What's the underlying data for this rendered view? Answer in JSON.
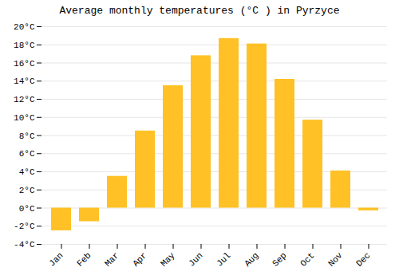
{
  "chart_data": {
    "type": "bar",
    "title": "Average monthly temperatures (°C ) in Pyrzyce",
    "categories": [
      "Jan",
      "Feb",
      "Mar",
      "Apr",
      "May",
      "Jun",
      "Jul",
      "Aug",
      "Sep",
      "Oct",
      "Nov",
      "Dec"
    ],
    "values": [
      -2.5,
      -1.5,
      3.5,
      8.5,
      13.5,
      16.8,
      18.7,
      18.1,
      14.2,
      9.7,
      4.1,
      -0.3
    ],
    "color": "#FFC125",
    "ylim": [
      -4,
      20
    ],
    "yticks": [
      {
        "value": -4,
        "label": "-4°C"
      },
      {
        "value": -2,
        "label": "-2°C"
      },
      {
        "value": 0,
        "label": "0°C"
      },
      {
        "value": 2,
        "label": "2°C"
      },
      {
        "value": 4,
        "label": "4°C"
      },
      {
        "value": 6,
        "label": "6°C"
      },
      {
        "value": 8,
        "label": "8°C"
      },
      {
        "value": 10,
        "label": "10°C"
      },
      {
        "value": 12,
        "label": "12°C"
      },
      {
        "value": 14,
        "label": "14°C"
      },
      {
        "value": 16,
        "label": "16°C"
      },
      {
        "value": 18,
        "label": "18°C"
      },
      {
        "value": 20,
        "label": "20°C"
      }
    ],
    "grid": true
  }
}
